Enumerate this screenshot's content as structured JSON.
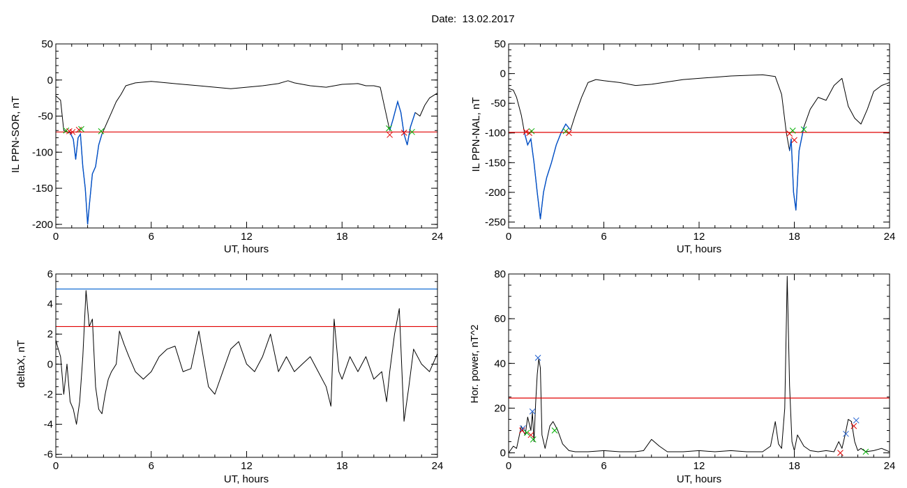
{
  "title": "Date:  13.02.2017",
  "colors": {
    "line": "#000000",
    "threshold_red": "#e00000",
    "threshold_blue": "#0060d0",
    "highlight_blue": "#0050c8",
    "marker_red": "#e00000",
    "marker_green": "#00b000",
    "marker_blue": "#2060d0"
  },
  "chart_data": [
    {
      "type": "line",
      "name": "top-left",
      "xlabel": "UT, hours",
      "ylabel": "IL PPN-SOR, nT",
      "xlim": [
        0,
        24
      ],
      "ylim": [
        -205,
        50
      ],
      "xticks": [
        0,
        6,
        12,
        18,
        24
      ],
      "yticks": [
        50,
        0,
        -50,
        -100,
        -150,
        -200
      ],
      "threshold_lines": [
        {
          "y": -72,
          "color": "red"
        }
      ],
      "series": [
        {
          "x": [
            0,
            0.3,
            0.5,
            0.7,
            0.9,
            1.1,
            1.25,
            1.4,
            1.55,
            1.7,
            1.85,
            2.0,
            2.1,
            2.3,
            2.5,
            2.7,
            2.9,
            3.2,
            3.5,
            3.8,
            4.1,
            4.4,
            5,
            6,
            7,
            8,
            9,
            10,
            11,
            12,
            13,
            14,
            14.6,
            15,
            16,
            17,
            18,
            19,
            19.5,
            20,
            20.4,
            20.7,
            21.0,
            21.2,
            21.5,
            21.7,
            21.9,
            22.1,
            22.3,
            22.6,
            22.9,
            23.2,
            23.5,
            24
          ],
          "y": [
            -22,
            -28,
            -70,
            -72,
            -73,
            -82,
            -110,
            -80,
            -75,
            -120,
            -150,
            -200,
            -175,
            -130,
            -120,
            -90,
            -75,
            -60,
            -45,
            -30,
            -20,
            -8,
            -4,
            -2,
            -4,
            -6,
            -8,
            -10,
            -12,
            -10,
            -8,
            -5,
            -1,
            -4,
            -8,
            -10,
            -6,
            -5,
            -8,
            -8,
            -10,
            -40,
            -70,
            -55,
            -30,
            -45,
            -75,
            -90,
            -65,
            -45,
            -50,
            -35,
            -25,
            -18
          ]
        }
      ],
      "highlight_ranges": [
        [
          0.6,
          2.9
        ],
        [
          20.9,
          22.6
        ]
      ],
      "markers": [
        {
          "x": 0.65,
          "y": -70,
          "color": "green"
        },
        {
          "x": 0.85,
          "y": -71,
          "color": "red"
        },
        {
          "x": 1.05,
          "y": -72,
          "color": "red"
        },
        {
          "x": 1.45,
          "y": -69,
          "color": "red"
        },
        {
          "x": 1.6,
          "y": -68,
          "color": "green"
        },
        {
          "x": 2.85,
          "y": -71,
          "color": "green"
        },
        {
          "x": 20.95,
          "y": -67,
          "color": "green"
        },
        {
          "x": 21.0,
          "y": -76,
          "color": "red"
        },
        {
          "x": 21.9,
          "y": -73,
          "color": "red"
        },
        {
          "x": 22.4,
          "y": -72,
          "color": "green"
        }
      ]
    },
    {
      "type": "line",
      "name": "top-right",
      "xlabel": "UT, hours",
      "ylabel": "IL PPN-NAL, nT",
      "xlim": [
        0,
        24
      ],
      "ylim": [
        -260,
        50
      ],
      "xticks": [
        0,
        6,
        12,
        18,
        24
      ],
      "yticks": [
        50,
        0,
        -50,
        -100,
        -150,
        -200,
        -250
      ],
      "threshold_lines": [
        {
          "y": -99,
          "color": "red"
        }
      ],
      "series": [
        {
          "x": [
            0,
            0.3,
            0.5,
            0.8,
            1.0,
            1.2,
            1.4,
            1.6,
            1.8,
            2.0,
            2.2,
            2.4,
            2.7,
            3.0,
            3.3,
            3.6,
            3.9,
            4.2,
            4.6,
            5.0,
            5.5,
            6,
            7,
            8,
            9,
            10,
            11,
            12,
            13,
            14,
            15,
            16,
            16.8,
            17.2,
            17.5,
            17.7,
            17.8,
            17.95,
            18.1,
            18.3,
            18.6,
            19,
            19.5,
            20,
            20.5,
            21,
            21.4,
            21.8,
            22.2,
            22.6,
            23,
            23.5,
            24
          ],
          "y": [
            -25,
            -28,
            -40,
            -70,
            -100,
            -120,
            -110,
            -150,
            -200,
            -245,
            -200,
            -175,
            -150,
            -120,
            -100,
            -85,
            -95,
            -70,
            -40,
            -15,
            -10,
            -12,
            -15,
            -20,
            -18,
            -14,
            -10,
            -8,
            -6,
            -4,
            -3,
            -2,
            -5,
            -35,
            -100,
            -130,
            -110,
            -200,
            -230,
            -130,
            -90,
            -60,
            -40,
            -45,
            -20,
            -8,
            -55,
            -75,
            -85,
            -60,
            -30,
            -20,
            -15
          ]
        }
      ],
      "highlight_ranges": [
        [
          1.0,
          4.0
        ],
        [
          17.6,
          18.7
        ]
      ],
      "markers": [
        {
          "x": 1.1,
          "y": -98,
          "color": "red"
        },
        {
          "x": 1.3,
          "y": -100,
          "color": "red"
        },
        {
          "x": 1.45,
          "y": -97,
          "color": "green"
        },
        {
          "x": 3.6,
          "y": -97,
          "color": "green"
        },
        {
          "x": 3.8,
          "y": -100,
          "color": "red"
        },
        {
          "x": 17.7,
          "y": -101,
          "color": "red"
        },
        {
          "x": 17.9,
          "y": -96,
          "color": "green"
        },
        {
          "x": 18.0,
          "y": -112,
          "color": "red"
        },
        {
          "x": 18.6,
          "y": -94,
          "color": "green"
        }
      ]
    },
    {
      "type": "line",
      "name": "bottom-left",
      "xlabel": "UT, hours",
      "ylabel": "deltaX, nT",
      "xlim": [
        0,
        24
      ],
      "ylim": [
        -6.2,
        6
      ],
      "xticks": [
        0,
        6,
        12,
        18,
        24
      ],
      "yticks": [
        6,
        4,
        2,
        0,
        -2,
        -4,
        -6
      ],
      "threshold_lines": [
        {
          "y": 5.0,
          "color": "blue"
        },
        {
          "y": 2.5,
          "color": "red"
        }
      ],
      "series": [
        {
          "x": [
            0,
            0.1,
            0.3,
            0.5,
            0.7,
            0.9,
            1.1,
            1.3,
            1.5,
            1.7,
            1.9,
            2.1,
            2.3,
            2.5,
            2.7,
            2.9,
            3.1,
            3.3,
            3.5,
            3.8,
            4.0,
            4.3,
            4.6,
            5.0,
            5.5,
            6.0,
            6.5,
            7.0,
            7.5,
            8.0,
            8.5,
            9.0,
            9.3,
            9.6,
            10.0,
            10.5,
            11.0,
            11.5,
            12.0,
            12.5,
            13.0,
            13.5,
            14.0,
            14.5,
            15.0,
            15.5,
            16.0,
            16.5,
            17.0,
            17.3,
            17.5,
            17.8,
            18.0,
            18.5,
            19.0,
            19.5,
            20.0,
            20.5,
            20.8,
            21.0,
            21.3,
            21.6,
            21.9,
            22.2,
            22.5,
            23.0,
            23.5,
            24.0
          ],
          "y": [
            1.6,
            1.2,
            0.5,
            -2.0,
            0.0,
            -2.5,
            -3.0,
            -4.0,
            -2.5,
            0.5,
            4.9,
            2.5,
            3.0,
            -1.5,
            -3.0,
            -3.3,
            -2.0,
            -1.0,
            -0.5,
            0.0,
            2.2,
            1.3,
            0.5,
            -0.5,
            -1.0,
            -0.5,
            0.5,
            1.0,
            1.2,
            -0.5,
            -0.3,
            2.2,
            0.3,
            -1.5,
            -2.0,
            -0.5,
            1.0,
            1.5,
            0.0,
            -0.5,
            0.5,
            2.0,
            -0.5,
            0.5,
            -0.5,
            0.0,
            0.5,
            -0.5,
            -1.5,
            -2.8,
            3.0,
            -0.5,
            -1.0,
            0.5,
            -0.5,
            0.5,
            -1.0,
            -0.5,
            -2.5,
            -0.5,
            2.0,
            3.7,
            -3.8,
            -1.5,
            1.0,
            0.0,
            -0.5,
            0.7
          ]
        }
      ],
      "highlight_ranges": [],
      "markers": []
    },
    {
      "type": "line",
      "name": "bottom-right",
      "xlabel": "UT, hours",
      "ylabel": "Hor. power, nT^2",
      "xlim": [
        0,
        24
      ],
      "ylim": [
        -2,
        80
      ],
      "xticks": [
        0,
        6,
        12,
        18,
        24
      ],
      "yticks": [
        80,
        60,
        40,
        20,
        0
      ],
      "threshold_lines": [
        {
          "y": 24.5,
          "color": "red"
        }
      ],
      "series": [
        {
          "x": [
            0,
            0.3,
            0.5,
            0.8,
            0.9,
            1.05,
            1.2,
            1.4,
            1.5,
            1.6,
            1.7,
            1.8,
            1.9,
            2.0,
            2.1,
            2.3,
            2.6,
            2.8,
            3.1,
            3.4,
            3.8,
            4.2,
            5,
            6,
            7,
            8,
            8.5,
            9,
            9.5,
            10,
            11,
            12,
            13,
            14,
            15,
            16,
            16.5,
            16.8,
            17.0,
            17.2,
            17.4,
            17.55,
            17.7,
            17.85,
            18.0,
            18.2,
            18.6,
            19.0,
            19.5,
            20.0,
            20.5,
            20.8,
            21.0,
            21.2,
            21.4,
            21.6,
            21.8,
            22.0,
            22.2,
            22.5,
            23.0,
            23.5,
            24
          ],
          "y": [
            0,
            3,
            2,
            12,
            10,
            8,
            16,
            10,
            18,
            5,
            22,
            35,
            42,
            38,
            8,
            2,
            12,
            14,
            10,
            4,
            1,
            0.5,
            0.5,
            1,
            0.5,
            0.5,
            1,
            6,
            3,
            0.5,
            0.5,
            1,
            0.5,
            1,
            0.5,
            0.5,
            3,
            14,
            4,
            2,
            20,
            79,
            30,
            5,
            1,
            8,
            3,
            1,
            0.5,
            1,
            0.5,
            5,
            2,
            8,
            15,
            14,
            5,
            1,
            2,
            0.5,
            1,
            2,
            0.5
          ]
        }
      ],
      "highlight_ranges": [],
      "markers": [
        {
          "x": 0.85,
          "y": 10,
          "color": "red"
        },
        {
          "x": 0.9,
          "y": 11,
          "color": "blue"
        },
        {
          "x": 1.15,
          "y": 9,
          "color": "green"
        },
        {
          "x": 1.4,
          "y": 8,
          "color": "red"
        },
        {
          "x": 1.55,
          "y": 6,
          "color": "green"
        },
        {
          "x": 1.5,
          "y": 18.5,
          "color": "blue"
        },
        {
          "x": 1.85,
          "y": 42.5,
          "color": "blue"
        },
        {
          "x": 2.9,
          "y": 10,
          "color": "green"
        },
        {
          "x": 20.9,
          "y": 0,
          "color": "red"
        },
        {
          "x": 21.25,
          "y": 8.5,
          "color": "blue"
        },
        {
          "x": 21.75,
          "y": 12,
          "color": "red"
        },
        {
          "x": 21.9,
          "y": 14.5,
          "color": "blue"
        },
        {
          "x": 22.5,
          "y": 0.5,
          "color": "green"
        }
      ]
    }
  ]
}
